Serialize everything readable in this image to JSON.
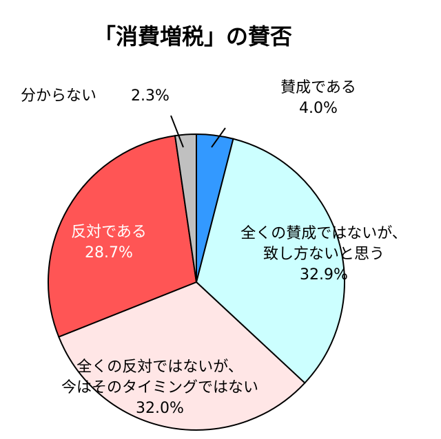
{
  "chart_data": {
    "type": "pie",
    "title": "「消費増税」の賛否",
    "slices": [
      {
        "label": [
          "賛成である"
        ],
        "value": 4.0,
        "value_text": "4.0%",
        "color": "#3399ff"
      },
      {
        "label": [
          "全くの賛成ではないが、",
          "致し方ないと思う"
        ],
        "value": 32.9,
        "value_text": "32.9%",
        "color": "#ccffff"
      },
      {
        "label": [
          "全くの反対ではないが、",
          "今はそのタイミングではない"
        ],
        "value": 32.0,
        "value_text": "32.0%",
        "color": "#ffe6e6"
      },
      {
        "label": [
          "反対である"
        ],
        "value": 28.7,
        "value_text": "28.7%",
        "color": "#ff5555"
      },
      {
        "label": [
          "分からない"
        ],
        "value": 2.3,
        "value_text": "2.3%",
        "color": "#c0c0c0"
      }
    ]
  }
}
